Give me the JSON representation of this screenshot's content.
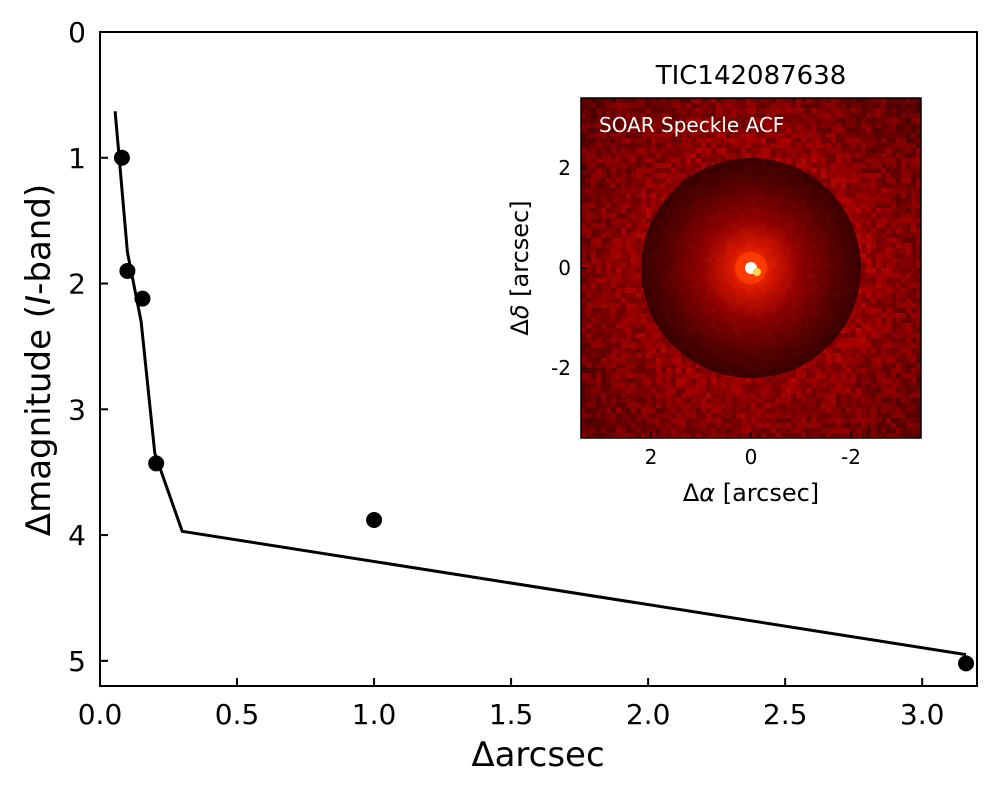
{
  "chart_data": [
    {
      "type": "scatter",
      "xlabel": "Δarcsec",
      "ylabel_prefix": "Δmagnitude (",
      "ylabel_italic": "I",
      "ylabel_suffix": "-band)",
      "xlim": [
        0.0,
        3.2
      ],
      "ylim": [
        5.2,
        0.0
      ],
      "y_inverted": true,
      "xticks": [
        "0.0",
        "0.5",
        "1.0",
        "1.5",
        "2.0",
        "2.5",
        "3.0"
      ],
      "xtick_values": [
        0.0,
        0.5,
        1.0,
        1.5,
        2.0,
        2.5,
        3.0
      ],
      "yticks": [
        "0",
        "1",
        "2",
        "3",
        "4",
        "5"
      ],
      "ytick_values": [
        0,
        1,
        2,
        3,
        4,
        5
      ],
      "points": {
        "x": [
          0.08,
          0.1,
          0.155,
          0.205,
          1.0,
          3.16
        ],
        "y": [
          1.0,
          1.9,
          2.12,
          3.43,
          3.88,
          5.02
        ]
      },
      "curve": {
        "x": [
          0.055,
          0.07,
          0.1,
          0.15,
          0.2,
          0.3,
          3.16
        ],
        "y": [
          0.63,
          1.0,
          1.75,
          2.3,
          3.35,
          3.97,
          4.95
        ]
      },
      "colors": {
        "points": "#000000",
        "curve": "#000000"
      }
    },
    {
      "type": "heatmap",
      "title": "TIC142087638",
      "annotation": "SOAR Speckle ACF",
      "xlabel_prefix": "Δ",
      "xlabel_symbol": "α",
      "xlabel_suffix": " [arcsec]",
      "ylabel_prefix": "Δ",
      "ylabel_symbol": "δ",
      "ylabel_suffix": " [arcsec]",
      "xlim": [
        3.4,
        -3.4
      ],
      "ylim": [
        -3.4,
        3.4
      ],
      "xticks": [
        "2",
        "0",
        "-2"
      ],
      "xtick_values": [
        2,
        0,
        -2
      ],
      "yticks": [
        "2",
        "0",
        "-2"
      ],
      "ytick_values": [
        2,
        0,
        -2
      ],
      "colormap": "hot",
      "colors": {
        "background": "#2a0000",
        "peak": "#ffffff"
      }
    }
  ]
}
